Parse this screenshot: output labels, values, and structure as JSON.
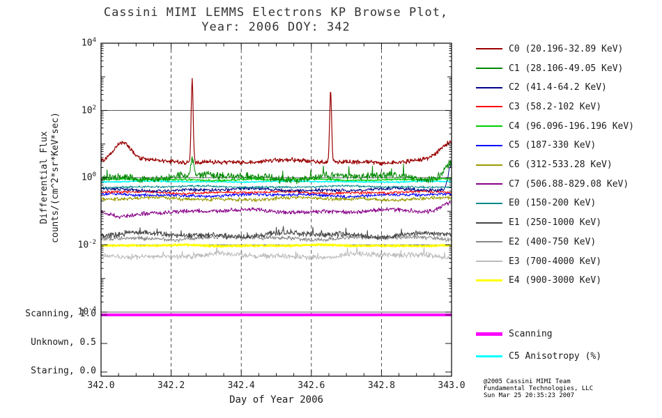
{
  "title": {
    "line1": "Cassini MIMI LEMMS Electrons KP Browse Plot,",
    "line2": "Year: 2006 DOY: 342"
  },
  "axes": {
    "x": {
      "label": "Day of Year 2006",
      "min": 342.0,
      "max": 343.0,
      "ticks": [
        "342.0",
        "342.2",
        "342.4",
        "342.6",
        "342.8",
        "343.0"
      ],
      "tick_values": [
        342.0,
        342.2,
        342.4,
        342.6,
        342.8,
        343.0
      ],
      "minor_step": 0.05
    },
    "y": {
      "label_line1": "Differential Flux",
      "label_line2": "counts/(cm^2*sr*KeV*sec)",
      "scale": "log10",
      "exponents": [
        4,
        2,
        0,
        -2,
        -4
      ]
    },
    "state": {
      "ticks": [
        {
          "label": "Scanning, 1.0",
          "value": 1.0
        },
        {
          "label": "Unknown, 0.5",
          "value": 0.5
        },
        {
          "label": "Staring, 0.0",
          "value": 0.0
        }
      ]
    }
  },
  "chart_data": {
    "type": "line",
    "x_range": [
      342.0,
      343.0
    ],
    "y_scale": "log10",
    "y_range_exponents": [
      -4,
      4
    ],
    "grid": {
      "vertical_dashed_at": [
        342.2,
        342.4,
        342.6,
        342.8
      ],
      "horizontal_solid_at_exponents": [
        2,
        0,
        -2,
        -4
      ]
    },
    "series": [
      {
        "name": "C0",
        "label": "C0 (20.196-32.89 KeV)",
        "color": "#990000",
        "level": 0.48,
        "noise": 0.07,
        "width": 1.2,
        "z": 15,
        "burst": 0,
        "spikes": [
          [
            342.06,
            0.55,
            0.035
          ],
          [
            342.26,
            2.5,
            0.004
          ],
          [
            342.655,
            2.15,
            0.004
          ],
          [
            343.0,
            0.55,
            0.045
          ]
        ]
      },
      {
        "name": "C1",
        "label": "C1 (28.106-49.05 KeV)",
        "color": "#008800",
        "level": 0.02,
        "noise": 0.12,
        "width": 1,
        "z": 14,
        "burst": 0.35,
        "spikes": [
          [
            342.26,
            0.5,
            0.005
          ],
          [
            343.0,
            0.45,
            0.03
          ]
        ]
      },
      {
        "name": "C2",
        "label": "C2 (41.4-64.2 KeV)",
        "color": "#000088",
        "level": -0.36,
        "noise": 0.055,
        "width": 1,
        "z": 11,
        "burst": 0,
        "spikes": [
          [
            343.0,
            0.8,
            0.012
          ]
        ]
      },
      {
        "name": "C3",
        "label": "C3 (58.2-102 KeV)",
        "color": "#FF0000",
        "level": -0.44,
        "noise": 0.045,
        "width": 1,
        "z": 10,
        "burst": 0,
        "spikes": []
      },
      {
        "name": "C4",
        "label": "C4 (96.096-196.196 KeV)",
        "color": "#00CC00",
        "level": -0.06,
        "noise": 0.035,
        "width": 1.2,
        "z": 13,
        "burst": 0,
        "spikes": []
      },
      {
        "name": "C5",
        "label": "C5 (187-330 KeV)",
        "color": "#0000FF",
        "level": -0.52,
        "noise": 0.05,
        "width": 1,
        "z": 9,
        "burst": 0,
        "spikes": []
      },
      {
        "name": "C6",
        "label": "C6 (312-533.28 KeV)",
        "color": "#999900",
        "level": -0.63,
        "noise": 0.06,
        "width": 1,
        "z": 8,
        "burst": 0,
        "spikes": []
      },
      {
        "name": "C7",
        "label": "C7 (506.88-829.08 KeV)",
        "color": "#880088",
        "level": -1.0,
        "noise": 0.07,
        "width": 1,
        "z": 7,
        "burst": 0,
        "spikes": [
          [
            342.05,
            -0.18,
            0.05
          ],
          [
            343.0,
            0.25,
            0.04
          ]
        ]
      },
      {
        "name": "E0",
        "label": "E0 (150-200 KeV)",
        "color": "#008888",
        "level": -0.27,
        "noise": 0.035,
        "width": 1,
        "z": 12,
        "burst": 0,
        "spikes": []
      },
      {
        "name": "E1",
        "label": "E1 (250-1000 KeV)",
        "color": "#444444",
        "level": -1.7,
        "noise": 0.09,
        "width": 1,
        "z": 5,
        "burst": 0.2,
        "spikes": []
      },
      {
        "name": "E2",
        "label": "E2 (400-750 KeV)",
        "color": "#888888",
        "level": -1.8,
        "noise": 0.07,
        "width": 1,
        "z": 4,
        "burst": 0,
        "spikes": []
      },
      {
        "name": "E3",
        "label": "E3 (700-4000 KeV)",
        "color": "#BBBBBB",
        "level": -2.32,
        "noise": 0.09,
        "width": 1,
        "z": 3,
        "burst": 0.2,
        "spikes": []
      },
      {
        "name": "E4",
        "label": "E4 (900-3000 KeV)",
        "color": "#FFFF00",
        "level": -2.02,
        "noise": 0.025,
        "width": 2.5,
        "z": 6,
        "burst": 0,
        "spikes": []
      }
    ],
    "overlays": [
      {
        "name": "C5-anisotropy",
        "label": "C5 Anisotropy (%)",
        "color": "#00FFFF",
        "level": -0.12,
        "noise": 0.02,
        "width": 1.5,
        "z": 1,
        "burst": 0,
        "spikes": []
      }
    ],
    "scanning": {
      "label": "Scanning",
      "color": "#FF00FF",
      "value": 1.0,
      "width": 4
    }
  },
  "credit": {
    "line1": "@2005 Cassini MIMI Team",
    "line2": "Fundamental Technologies, LLC",
    "line3": "Sun Mar 25 20:35:23 2007"
  }
}
